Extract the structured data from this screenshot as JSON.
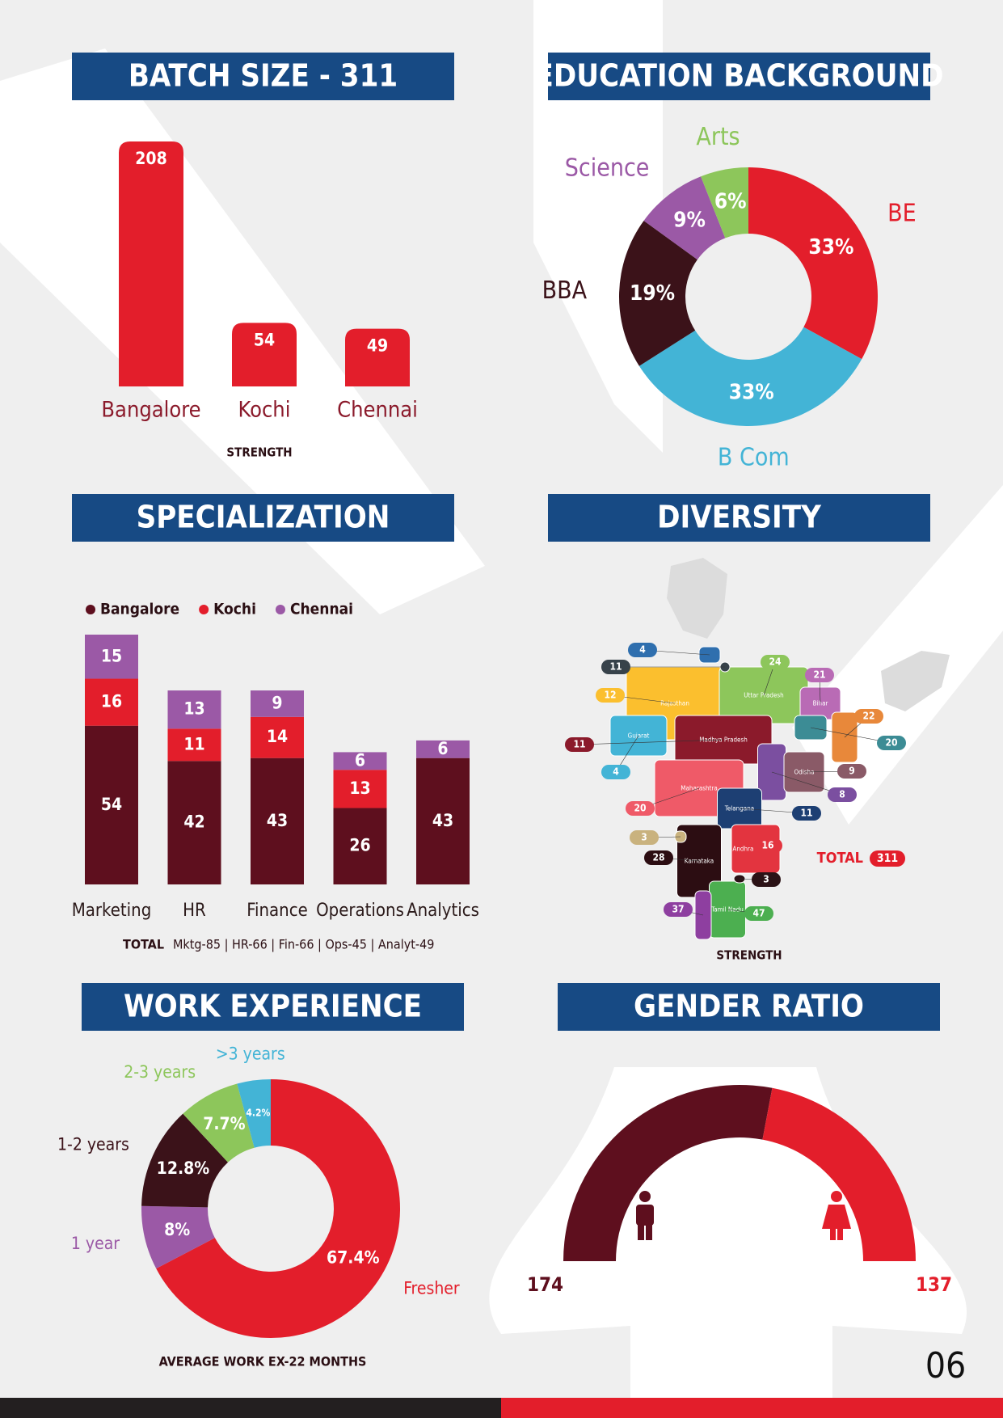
{
  "chart_data": [
    {
      "type": "bar",
      "title": "BATCH SIZE - 311",
      "categories": [
        "Bangalore",
        "Kochi",
        "Chennai"
      ],
      "values": [
        208,
        54,
        49
      ],
      "color": "#e31e2b",
      "xlabel": "STRENGTH"
    },
    {
      "type": "donut",
      "title": "EDUCATION BACKGROUND",
      "categories": [
        "BE",
        "B Com",
        "BBA",
        "Science",
        "Arts"
      ],
      "values": [
        33,
        33,
        19,
        9,
        6
      ],
      "value_labels": [
        "33%",
        "33%",
        "19%",
        "9%",
        "6%"
      ],
      "colors": [
        "#e31e2b",
        "#43b4d6",
        "#3b1219",
        "#9b59a6",
        "#8dc65b"
      ]
    },
    {
      "type": "stacked_bar",
      "title": "SPECIALIZATION",
      "categories": [
        "Marketing",
        "HR",
        "Finance",
        "Operations",
        "Analytics"
      ],
      "series": [
        {
          "name": "Bangalore",
          "color": "#5e0f1e",
          "values": [
            54,
            42,
            43,
            26,
            43
          ]
        },
        {
          "name": "Kochi",
          "color": "#e31e2b",
          "values": [
            16,
            11,
            14,
            13,
            null
          ]
        },
        {
          "name": "Chennai",
          "color": "#9b59a6",
          "values": [
            15,
            13,
            9,
            6,
            6
          ]
        }
      ],
      "legend": "top-left",
      "note_label": "TOTAL",
      "note": "Mktg-85 | HR-66 | Fin-66 | Ops-45 | Analyt-49"
    },
    {
      "type": "map",
      "title": "DIVERSITY",
      "regions": [
        {
          "name": "Rajasthan",
          "value": 12,
          "color": "#fbbf2e"
        },
        {
          "name": "Uttar Pradesh",
          "value": 24,
          "color": "#8dc65b"
        },
        {
          "name": "Bihar",
          "value": 21,
          "color": "#b96bb5"
        },
        {
          "name": "West Bengal",
          "value": 22,
          "color": "#e8883a"
        },
        {
          "name": "Jharkhand",
          "value": 20,
          "color": "#3c8c95"
        },
        {
          "name": "Gujarat",
          "value": 4,
          "color": "#43b4d6"
        },
        {
          "name": "Madhya Pradesh",
          "value": 11,
          "color": "#8b1a2b"
        },
        {
          "name": "Chhattisgarh",
          "value": 8,
          "color": "#7b4fa0"
        },
        {
          "name": "Odisha",
          "value": 9,
          "color": "#8a5a67"
        },
        {
          "name": "Maharashtra",
          "value": 20,
          "color": "#ef5a68"
        },
        {
          "name": "Telangana",
          "value": 11,
          "color": "#1d3f73"
        },
        {
          "name": "Karnataka",
          "value": 28,
          "color": "#2c0d12"
        },
        {
          "name": "Goa",
          "value": 3,
          "color": "#c9b27e"
        },
        {
          "name": "Andhra Pradesh",
          "value": 16,
          "color": "#e3343f"
        },
        {
          "name": "Tamil Nadu",
          "value": 47,
          "color": "#4caf50"
        },
        {
          "name": "Kerala",
          "value": 37,
          "color": "#8e3fa0"
        },
        {
          "name": "Puducherry",
          "value": 3,
          "color": "#2b1216"
        },
        {
          "name": "Haryana",
          "value": 4,
          "color": "#2f6fae"
        },
        {
          "name": "Delhi",
          "value": 11,
          "color": "#37424a"
        }
      ],
      "total_label": "TOTAL",
      "total": 311,
      "total_color": "#e31e2b",
      "xlabel": "STRENGTH"
    },
    {
      "type": "donut",
      "title": "WORK EXPERIENCE",
      "categories": [
        "Fresher",
        "1 year",
        "1-2 years",
        "2-3 years",
        ">3 years"
      ],
      "values": [
        67.4,
        8,
        12.8,
        7.7,
        4.2
      ],
      "value_labels": [
        "67.4%",
        "8%",
        "12.8%",
        "7.7%",
        "4.2%"
      ],
      "colors": [
        "#e31e2b",
        "#9b59a6",
        "#3b1219",
        "#8dc65b",
        "#43b4d6"
      ],
      "note": "AVERAGE WORK EX-22 MONTHS"
    },
    {
      "type": "semi_donut",
      "title": "GENDER RATIO",
      "categories": [
        null,
        null
      ],
      "values": [
        174,
        137
      ],
      "colors": [
        "#5e0f1e",
        "#e31e2b"
      ]
    }
  ],
  "page_number": "06"
}
